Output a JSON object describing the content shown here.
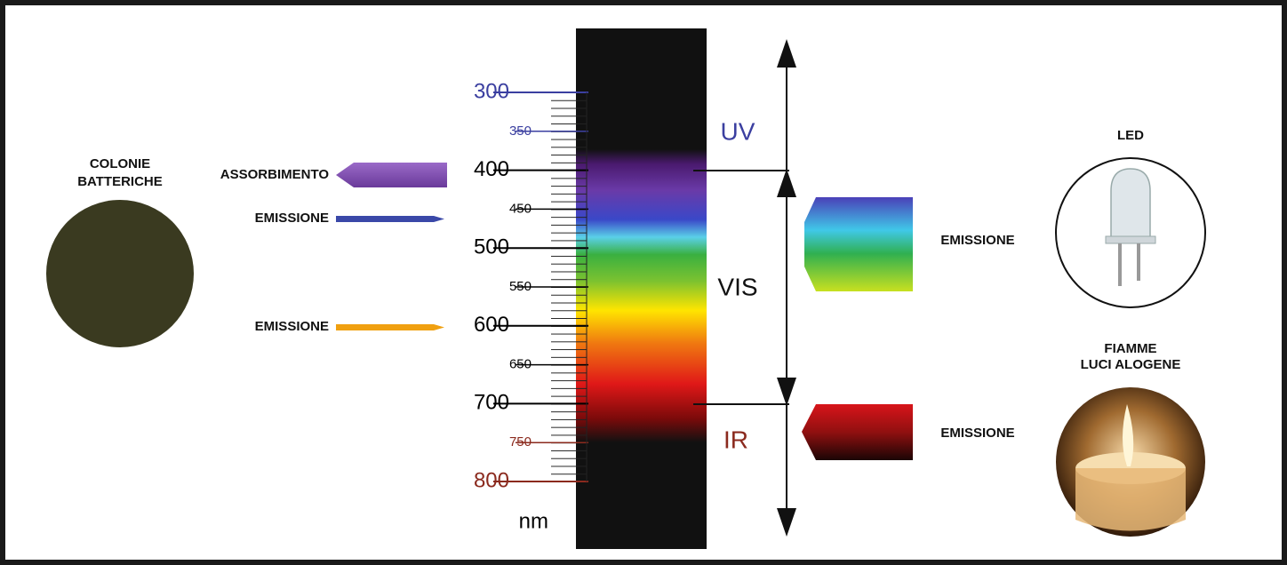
{
  "left": {
    "title_lines": [
      "COLONIE",
      "BATTERICHE"
    ],
    "absorption": "ASSORBIMENTO",
    "emission_blue": "EMISSIONE",
    "emission_orange": "EMISSIONE"
  },
  "scale": {
    "ticks": [
      300,
      350,
      400,
      450,
      500,
      550,
      600,
      650,
      700,
      750,
      800
    ],
    "tick_colors": [
      "#3b3fa0",
      "#3b3fa0",
      "#000000",
      "#000000",
      "#000000",
      "#000000",
      "#000000",
      "#000000",
      "#000000",
      "#8b2a1e",
      "#8b2a1e"
    ],
    "unit": "nm"
  },
  "bands": {
    "uv": "UV",
    "vis": "VIS",
    "ir": "IR"
  },
  "right": {
    "led": {
      "title": "LED",
      "label": "EMISSIONE"
    },
    "flame": {
      "title_lines": [
        "FIAMME",
        "LUCI ALOGENE"
      ],
      "label": "EMISSIONE"
    }
  }
}
